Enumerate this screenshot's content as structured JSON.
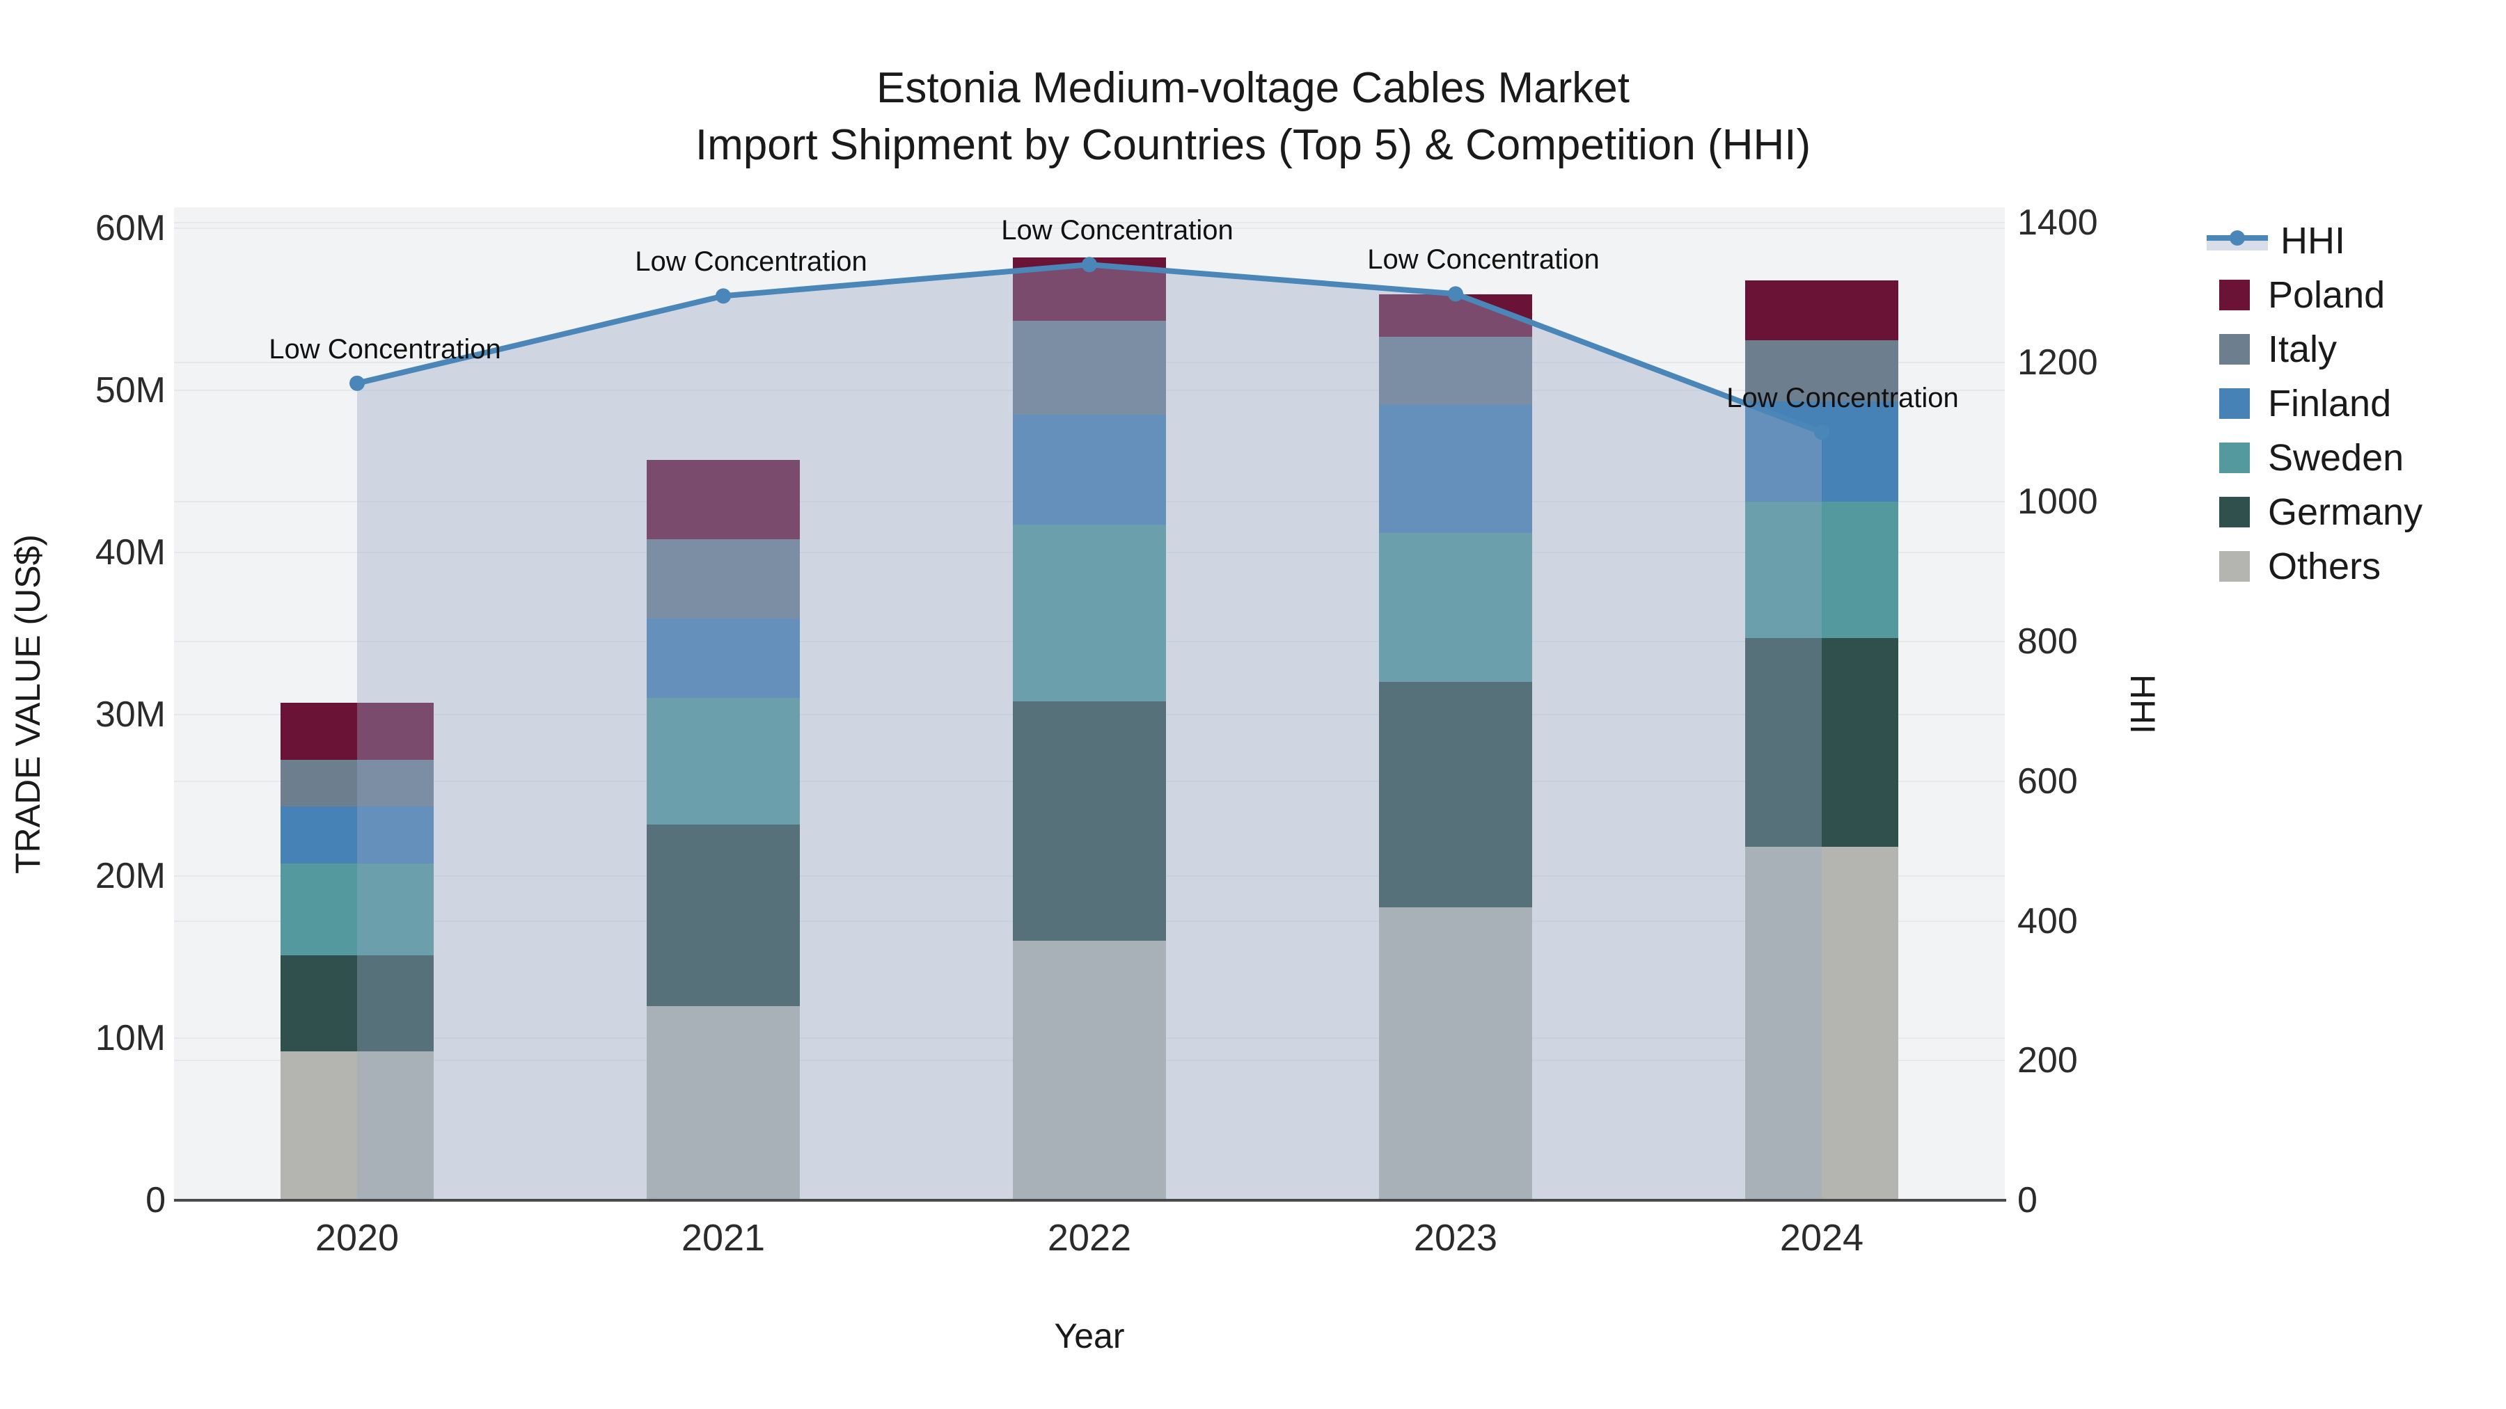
{
  "page": {
    "background": "#ffffff"
  },
  "chart_data": {
    "type": "bar",
    "subtype": "stacked-bar-with-line",
    "title": "Estonia Medium-voltage Cables Market",
    "subtitle": "Import Shipment by Countries (Top 5) & Competition (HHI)",
    "xlabel": "Year",
    "ylabel_left": "TRADE VALUE (US$)",
    "ylabel_right": "HHI",
    "categories": [
      "2020",
      "2021",
      "2022",
      "2023",
      "2024"
    ],
    "series": [
      {
        "name": "Others",
        "color": "#b4b5b1",
        "values_musd": [
          9.2,
          12.0,
          16.0,
          18.1,
          21.8
        ]
      },
      {
        "name": "Germany",
        "color": "#2f504d",
        "values_musd": [
          5.9,
          11.2,
          14.8,
          13.9,
          12.9
        ]
      },
      {
        "name": "Sweden",
        "color": "#53999d",
        "values_musd": [
          5.7,
          7.8,
          10.9,
          9.2,
          8.4
        ]
      },
      {
        "name": "Finland",
        "color": "#4782b6",
        "values_musd": [
          3.5,
          4.9,
          6.8,
          7.9,
          6.2
        ]
      },
      {
        "name": "Italy",
        "color": "#6d7e8e",
        "values_musd": [
          2.9,
          4.9,
          5.8,
          4.2,
          3.8
        ]
      },
      {
        "name": "Poland",
        "color": "#6a1336",
        "values_musd": [
          3.5,
          4.9,
          3.9,
          2.6,
          3.7
        ]
      }
    ],
    "bar_totals_musd": [
      30.7,
      45.7,
      58.2,
      55.9,
      56.8
    ],
    "line_series": {
      "name": "HHI",
      "color": "#4a86b8",
      "area_fill": "rgba(150,168,196,0.38)",
      "values": [
        1170,
        1295,
        1340,
        1298,
        1100
      ]
    },
    "annotations": [
      {
        "category": "2020",
        "text": "Low Concentration"
      },
      {
        "category": "2021",
        "text": "Low Concentration"
      },
      {
        "category": "2022",
        "text": "Low Concentration"
      },
      {
        "category": "2023",
        "text": "Low Concentration"
      },
      {
        "category": "2024",
        "text": "Low Concentration"
      }
    ],
    "y_left_axis": {
      "min": 0,
      "max": 60000000,
      "tick_labels": [
        "0",
        "10M",
        "20M",
        "30M",
        "40M",
        "50M",
        "60M"
      ]
    },
    "y_right_axis": {
      "min": 0,
      "max": 1400,
      "tick_labels": [
        "0",
        "200",
        "400",
        "600",
        "800",
        "1000",
        "1200",
        "1400"
      ]
    },
    "legend_order": [
      "HHI",
      "Poland",
      "Italy",
      "Finland",
      "Sweden",
      "Germany",
      "Others"
    ],
    "legend_position": "right",
    "grid": true,
    "plot_background": "#f2f3f4",
    "gridline_color": "#e6e8ec",
    "axis_line_color": "#4a4a4a"
  }
}
